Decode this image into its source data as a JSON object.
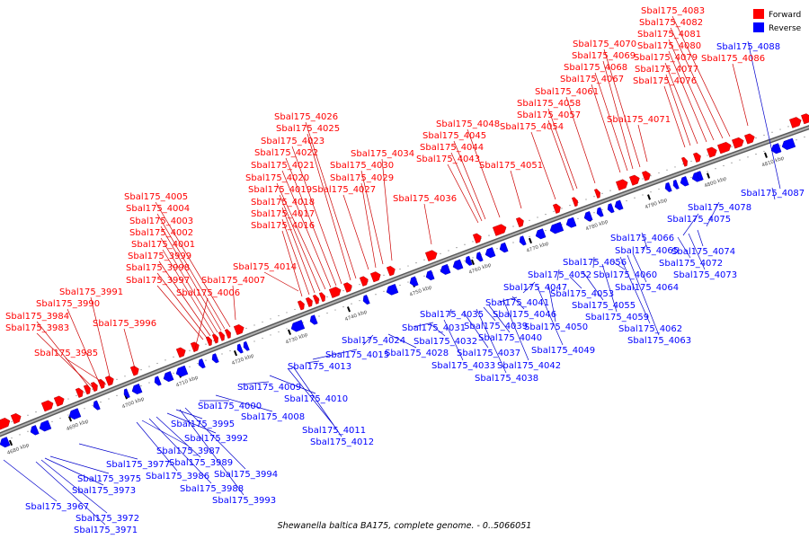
{
  "caption": "Shewanella baltica BA175, complete genome. - 0..5066051",
  "legend": {
    "forward": {
      "label": "Forward",
      "color": "#ff0000"
    },
    "reverse": {
      "label": "Reverse",
      "color": "#0000ff"
    }
  },
  "colors": {
    "forward": "#ff0000",
    "reverse": "#0000ff",
    "forward_line": "#cc0000",
    "reverse_line": "#0000cc",
    "backbone": "#8a8a8a"
  },
  "ticks": [
    "4680 kbp",
    "4690 kbp",
    "4700 kbp",
    "4710 kbp",
    "4720 kbp",
    "4730 kbp",
    "4740 kbp",
    "4750 kbp",
    "4760 kbp",
    "4770 kbp",
    "4780 kbp",
    "4790 kbp",
    "4800 kbp",
    "4810 kbp"
  ],
  "forward_labels": [
    "Sbal175_3985",
    "Sbal175_3983",
    "Sbal175_3984",
    "Sbal175_3990",
    "Sbal175_3991",
    "Sbal175_3996",
    "Sbal175_3997",
    "Sbal175_3998",
    "Sbal175_3999",
    "Sbal175_4001",
    "Sbal175_4002",
    "Sbal175_4003",
    "Sbal175_4004",
    "Sbal175_4005",
    "Sbal175_4006",
    "Sbal175_4007",
    "Sbal175_4014",
    "Sbal175_4016",
    "Sbal175_4017",
    "Sbal175_4018",
    "Sbal175_4019",
    "Sbal175_4020",
    "Sbal175_4021",
    "Sbal175_4022",
    "Sbal175_4023",
    "Sbal175_4025",
    "Sbal175_4026",
    "Sbal175_4027",
    "Sbal175_4029",
    "Sbal175_4030",
    "Sbal175_4034",
    "Sbal175_4036",
    "Sbal175_4043",
    "Sbal175_4044",
    "Sbal175_4045",
    "Sbal175_4048",
    "Sbal175_4051",
    "Sbal175_4054",
    "Sbal175_4057",
    "Sbal175_4058",
    "Sbal175_4061",
    "Sbal175_4067",
    "Sbal175_4068",
    "Sbal175_4069",
    "Sbal175_4070",
    "Sbal175_4071",
    "Sbal175_4076",
    "Sbal175_4077",
    "Sbal175_4079",
    "Sbal175_4080",
    "Sbal175_4081",
    "Sbal175_4082",
    "Sbal175_4083",
    "Sbal175_4086"
  ],
  "reverse_labels": [
    "Sbal175_3967",
    "Sbal175_3971",
    "Sbal175_3972",
    "Sbal175_3973",
    "Sbal175_3975",
    "Sbal175_3977",
    "Sbal175_3986",
    "Sbal175_3987",
    "Sbal175_3988",
    "Sbal175_3989",
    "Sbal175_3992",
    "Sbal175_3993",
    "Sbal175_3994",
    "Sbal175_3995",
    "Sbal175_4000",
    "Sbal175_4008",
    "Sbal175_4009",
    "Sbal175_4010",
    "Sbal175_4011",
    "Sbal175_4012",
    "Sbal175_4013",
    "Sbal175_4015",
    "Sbal175_4024",
    "Sbal175_4028",
    "Sbal175_4031",
    "Sbal175_4032",
    "Sbal175_4033",
    "Sbal175_4035",
    "Sbal175_4037",
    "Sbal175_4038",
    "Sbal175_4039",
    "Sbal175_4040",
    "Sbal175_4041",
    "Sbal175_4042",
    "Sbal175_4046",
    "Sbal175_4047",
    "Sbal175_4049",
    "Sbal175_4050",
    "Sbal175_4052",
    "Sbal175_4053",
    "Sbal175_4055",
    "Sbal175_4056",
    "Sbal175_4059",
    "Sbal175_4060",
    "Sbal175_4062",
    "Sbal175_4063",
    "Sbal175_4064",
    "Sbal175_4065",
    "Sbal175_4066",
    "Sbal175_4072",
    "Sbal175_4073",
    "Sbal175_4074",
    "Sbal175_4075",
    "Sbal175_4078",
    "Sbal175_4087",
    "Sbal175_4088"
  ]
}
